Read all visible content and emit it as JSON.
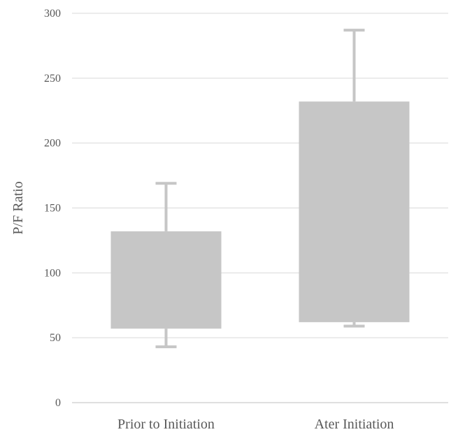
{
  "chart_data": {
    "type": "boxplot",
    "title": "",
    "xlabel": "",
    "ylabel": "P/F Ratio",
    "ylim": [
      0,
      300
    ],
    "yticks": [
      0,
      50,
      100,
      150,
      200,
      250,
      300
    ],
    "grid": true,
    "legend": "none",
    "categories": [
      "Prior to Initiation",
      "Ater Initiation"
    ],
    "boxes": [
      {
        "category": "Prior to Initiation",
        "min": 43,
        "q1": 57,
        "q3": 132,
        "max": 169
      },
      {
        "category": "Ater Initiation",
        "min": 59,
        "q1": 62,
        "q3": 232,
        "max": 287
      }
    ],
    "colors": {
      "box": "#c6c6c6",
      "grid": "#d9d9d9",
      "axis": "#bfbfbf",
      "text": "#595959"
    }
  }
}
